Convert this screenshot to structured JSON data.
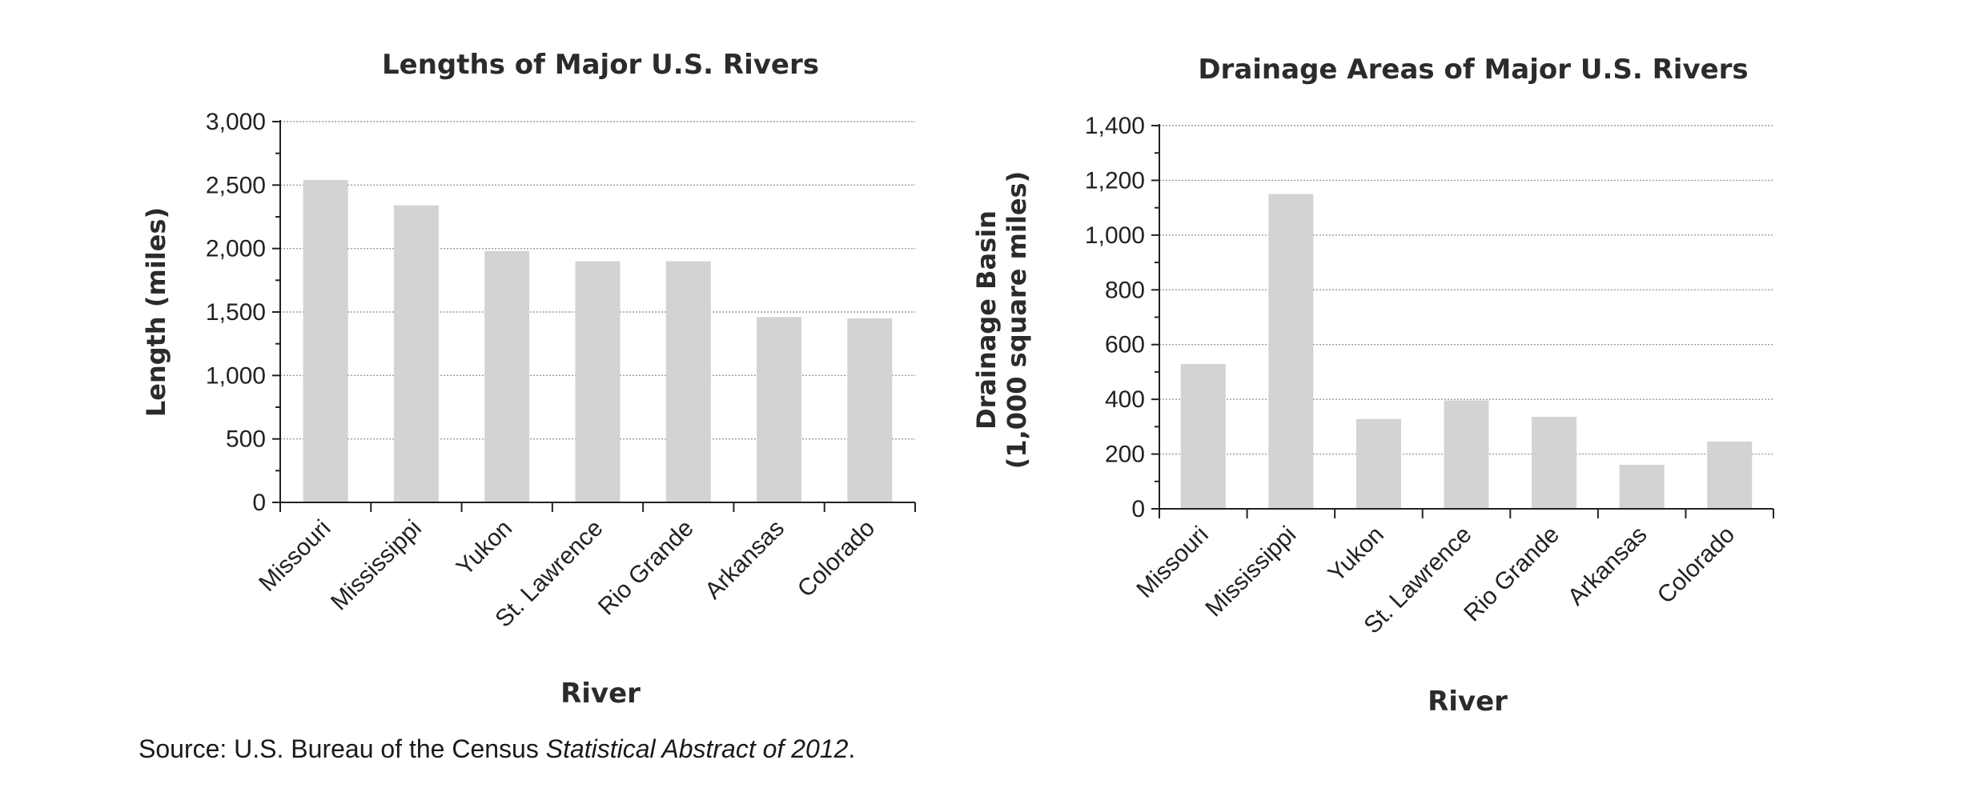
{
  "source": {
    "prefix": "Source: U.S. Bureau of the Census ",
    "italic": "Statistical Abstract of 2012",
    "suffix": "."
  },
  "chart_data": [
    {
      "type": "bar",
      "title": "Lengths of Major U.S. Rivers",
      "xlabel": "River",
      "ylabel": "Length (miles)",
      "ylim": [
        0,
        3000
      ],
      "yticks": [
        0,
        500,
        1000,
        1500,
        2000,
        2500,
        3000
      ],
      "ytick_labels": [
        "0",
        "500",
        "1,000",
        "1,500",
        "2,000",
        "2,500",
        "3,000"
      ],
      "grid": true,
      "bar_color": "#d3d3d3",
      "categories": [
        "Missouri",
        "Mississippi",
        "Yukon",
        "St. Lawrence",
        "Rio Grande",
        "Arkansas",
        "Colorado"
      ],
      "values": [
        2540,
        2340,
        1980,
        1900,
        1900,
        1460,
        1450
      ]
    },
    {
      "type": "bar",
      "title": "Drainage Areas of Major U.S. Rivers",
      "xlabel": "River",
      "ylabel": [
        "Drainage Basin",
        "(1,000 square miles)"
      ],
      "ylim": [
        0,
        1400
      ],
      "yticks": [
        0,
        200,
        400,
        600,
        800,
        1000,
        1200,
        1400
      ],
      "ytick_labels": [
        "0",
        "200",
        "400",
        "600",
        "800",
        "1,000",
        "1,200",
        "1,400"
      ],
      "grid": true,
      "bar_color": "#d3d3d3",
      "categories": [
        "Missouri",
        "Mississippi",
        "Yukon",
        "St. Lawrence",
        "Rio Grande",
        "Arkansas",
        "Colorado"
      ],
      "values": [
        529,
        1150,
        328,
        396,
        336,
        161,
        246
      ]
    }
  ]
}
